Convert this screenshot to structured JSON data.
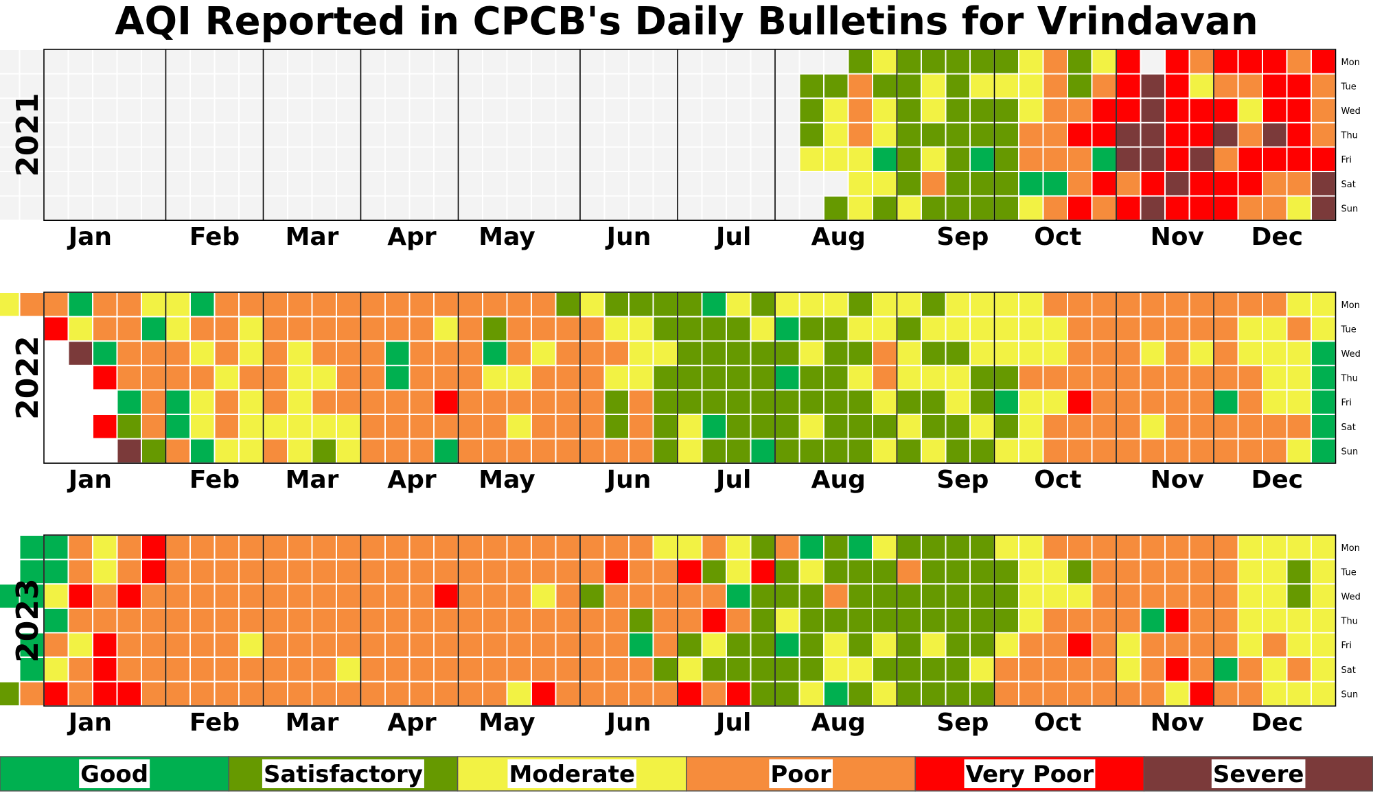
{
  "title": "AQI Reported in CPCB's Daily Bulletins for Vrindavan",
  "chart_data": {
    "type": "heatmap",
    "subtype": "calendar",
    "title": "AQI Reported in CPCB's Daily Bulletins for Vrindavan",
    "years": [
      "2021",
      "2022",
      "2023"
    ],
    "month_labels": [
      "Jan",
      "Feb",
      "Mar",
      "Apr",
      "May",
      "Jun",
      "Jul",
      "Aug",
      "Sep",
      "Oct",
      "Nov",
      "Dec"
    ],
    "weekday_labels": [
      "Mon",
      "Tue",
      "Wed",
      "Thu",
      "Fri",
      "Sat",
      "Sun"
    ],
    "categories": [
      "Good",
      "Satisfactory",
      "Moderate",
      "Poor",
      "Very Poor",
      "Severe"
    ],
    "category_colors": {
      "Good": "#00b050",
      "Satisfactory": "#669900",
      "Moderate": "#f2f244",
      "Poor": "#f68c3c",
      "Very Poor": "#ff0000",
      "Severe": "#7b3a3a",
      "No data": "#f3f3f3"
    },
    "legend": {
      "placement": "bottom",
      "entries": [
        "Good",
        "Satisfactory",
        "Moderate",
        "Poor",
        "Very Poor",
        "Severe"
      ]
    },
    "calendar_codes": {
      "2021": [
        "NNNNNNNNNNNNNNNNNNNNNNNNNNNNNNNNNNNNNNNNNNNNNNNNNNNNNNNNNNNNNNNNNSMSSSSSMPSMRVRPRRRPR",
        "NNNNNNNNNNNNNNNNNNNNNNNNNNNNNNNNNNNNNNNNNNNNNNNNNNNNNNNNNNNNNNNNSSPSSMSMMMPSPRXRMPPRRP",
        "NNNNNNNNNNNNNNNNNNNNNNNNNNNNNNNNNNNNNNNNNNNNNNNNNNNNNNNNNNNNNNNNSMPMSMSSSMPPRRXRRRMRRP",
        "NNNNNNNNNNNNNNNNNNNNNNNNNNNNNNNNNNNNNNNNNNNNNNNNNNNNNNNNNNNNNNNNSMPMSSSSSPPRRXXRRXPXRP",
        "NNNNNNNNNNNNNNNNNNNNNNNNNNNNNNNNNNNNNNNNNNNNNNNNNNNNNNNNNNNNNNNNMMMGSMSGSPPPGXXRXPRRRR",
        "NNNNNNNNNNNNNNNNNNNNNNNNNNNNNNNNNNNNNNNNNNNNNNNNNNNNNNNNNNNNNNNNMMSPSSSGGPRPRXRRRPPX",
        "NNNNNNNNNNNNNNNNNNNNNNNNNNNNNNNNNNNNNNNNNNNNNNNNNNNNNNNNNNNNNNNNSMSMSSSSMPRPRXRRRPPMX"
      ],
      "2022": [
        "XMPPGPPMMGPPPPPPPPPPPPPPSMSSSSGMSMMMSMMSMMMMPPPPPPPPPPMM",
        "RMPPGMPPMPPPPPPPMPSPPPPMMSSSSMGSSMMSMMMMMMPPPPPPPMMPM",
        "XGPPPMPMPMPPPGPPPGPMPPPMMSSSSSMSSPMSSMMMMPPPMPMPMMMG",
        "RPPPPMPPMMPPGPPPMMPPPMMSSSSSGSSMPMMMSSPPPPPPPPPPMMG",
        "GPGMPMPMPPPPPRPPPPPPSPSSSSSSSSSMSSMSGMMRPPPPPGPMMG",
        "RSPGMPMMMMMPPPPPPMPPPSPSMGSSSMSSSMSSMSMPPPPMPPPPPPG",
        "XSPGMMPMSMPPPGPPPPPPPPSMSSGSSSSMSMSSMMPPPPPPPPPPMG"
      ],
      "2023": [
        "GGPMPRPPPPPPPPPPPPPPPPPPPPMMPMSPGSGMSSSSMMPPPPPPPPMMMM",
        "GGPMPRPPPPPPPPPPPPPPPPPPRPPRSMRSMSSSPSSSSMMSPPPPPPMMSM",
        "GGMRPRPPPPPPPPPPPPRPPPMPSPPPPPGSSSPSSSSSSSMMMPPPPPPMMSM",
        "GPPPPPPPPPPPPPPPPPPPPPPPSPPRPSMSSSSSSSSSMPPPPGRPPMMMM",
        "GPMRPPPPPMPPPPPPPPPPPPPPPGPSMSSGSMSMSMSSMPPRPMPPPPMPMM",
        "GMPRPPPPPPPPPMPPPPPPPPPPPPSMSSSSSMMSSSSMPPPPPMPRPGPMPM",
        "GGSPRPRRPPPPPPPPPPPPPPPMRPPPPPRPRSSMGSMSSSSPPPPPPPMRPPMMM"
      ]
    }
  }
}
